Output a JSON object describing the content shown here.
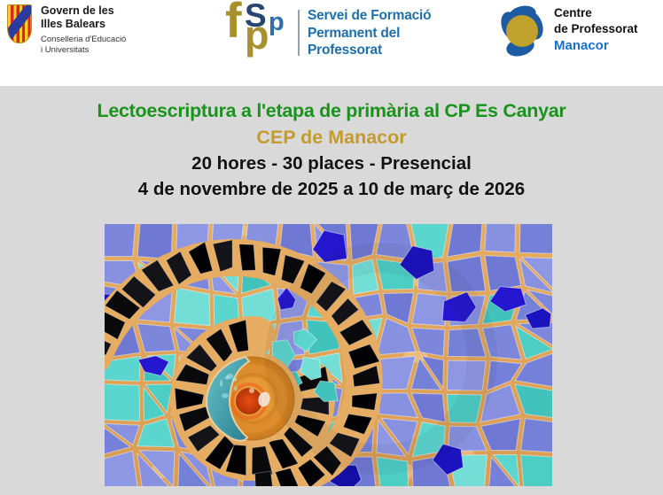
{
  "header": {
    "govern": {
      "title_line1": "Govern de les",
      "title_line2": "Illes Balears",
      "sub_line1": "Conselleria d'Educació",
      "sub_line2": "i Universitats"
    },
    "fsp": {
      "letters": [
        "f",
        "S",
        "p",
        "p"
      ],
      "line1": "Servei de Formació",
      "line2": "Permanent del",
      "line3": "Professorat"
    },
    "cep": {
      "line1": "Centre",
      "line2": "de Professorat",
      "line3": "Manacor"
    }
  },
  "course": {
    "title": "Lectoescriptura a l'etapa de primària al CP Es Canyar",
    "center": "CEP de Manacor",
    "details": "20 hores - 30 places - Presencial",
    "dates": "4 de novembre de 2025 a 10 de març de 2026"
  },
  "image": {
    "description": "Trencadís (Gaudí-style) ceramic mosaic: black tile spiral around an orange glass disc with a teal glass piece, surrounded by periwinkle, turquoise and navy shards on orange grout",
    "palette": {
      "grout": "#D99C52",
      "grout_light": "#E5AC62",
      "grout_patch": "#F0CE96",
      "periwinkle": [
        "#7C86DB",
        "#8791E0",
        "#6F79D3",
        "#8E97E4",
        "#7580D8"
      ],
      "turquoise": [
        "#5BD6CE",
        "#4CCEC5",
        "#72DED6",
        "#41C2BB"
      ],
      "navy": [
        "#1B12C0",
        "#2417CF",
        "#140DA6"
      ],
      "black": [
        "#0A0A0C",
        "#020205",
        "#131318"
      ],
      "disc_outer": "#C97A1E",
      "disc_mid": "#E29230",
      "disc_inner": "#F2B24C",
      "core": "#E94E12",
      "core_dark": "#B23407",
      "teal_light": "#63C6CE",
      "teal_dark": "#247F95",
      "highlight": "#F4E8DA"
    }
  },
  "colors": {
    "title_green": "#18941C",
    "accent_gold": "#C49B2E",
    "fsp_blue": "#1E6FA8",
    "manacor_blue": "#1B6FC6",
    "page_gray": "#D9D9D9",
    "header_white": "#FFFFFF"
  }
}
